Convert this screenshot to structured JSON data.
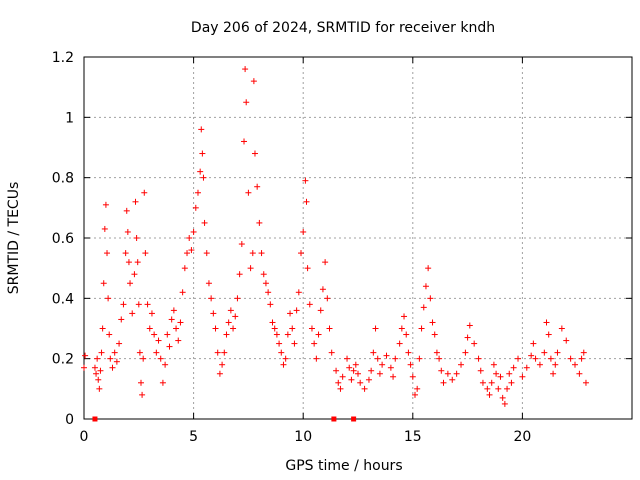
{
  "chart_data": {
    "type": "scatter",
    "title": "Day 206 of 2024, SRMTID for receiver kndh",
    "xlabel": "GPS time / hours",
    "ylabel": "SRMTID / TECUs",
    "xlim": [
      0,
      25
    ],
    "ylim": [
      0,
      1.2
    ],
    "xticks": [
      0,
      5,
      10,
      15,
      20
    ],
    "yticks": [
      0,
      0.2,
      0.4,
      0.6,
      0.8,
      1,
      1.2
    ],
    "xtick_labels": [
      "0",
      "5",
      "10",
      "15",
      "20"
    ],
    "ytick_labels": [
      "0",
      "0.2",
      "0.4",
      "0.6",
      "0.8",
      "1",
      "1.2"
    ],
    "grid": true,
    "marker_color": "#ff0000",
    "series": [
      {
        "name": "SRMTID",
        "marker": "plus",
        "points": [
          [
            0.0,
            0.17
          ],
          [
            0.05,
            0.21
          ],
          [
            0.5,
            0.17
          ],
          [
            0.55,
            0.15
          ],
          [
            0.6,
            0.2
          ],
          [
            0.65,
            0.13
          ],
          [
            0.7,
            0.1
          ],
          [
            0.75,
            0.16
          ],
          [
            0.8,
            0.22
          ],
          [
            0.85,
            0.3
          ],
          [
            0.9,
            0.45
          ],
          [
            0.95,
            0.63
          ],
          [
            1.0,
            0.71
          ],
          [
            1.05,
            0.55
          ],
          [
            1.1,
            0.4
          ],
          [
            1.15,
            0.28
          ],
          [
            1.2,
            0.2
          ],
          [
            1.3,
            0.17
          ],
          [
            1.4,
            0.22
          ],
          [
            1.5,
            0.19
          ],
          [
            1.6,
            0.25
          ],
          [
            1.7,
            0.33
          ],
          [
            1.8,
            0.38
          ],
          [
            1.9,
            0.55
          ],
          [
            1.95,
            0.69
          ],
          [
            2.0,
            0.62
          ],
          [
            2.05,
            0.52
          ],
          [
            2.1,
            0.45
          ],
          [
            2.2,
            0.35
          ],
          [
            2.3,
            0.48
          ],
          [
            2.35,
            0.72
          ],
          [
            2.4,
            0.6
          ],
          [
            2.45,
            0.52
          ],
          [
            2.5,
            0.38
          ],
          [
            2.55,
            0.22
          ],
          [
            2.6,
            0.12
          ],
          [
            2.65,
            0.08
          ],
          [
            2.7,
            0.2
          ],
          [
            2.75,
            0.75
          ],
          [
            2.8,
            0.55
          ],
          [
            2.9,
            0.38
          ],
          [
            3.0,
            0.3
          ],
          [
            3.1,
            0.35
          ],
          [
            3.2,
            0.28
          ],
          [
            3.3,
            0.22
          ],
          [
            3.4,
            0.26
          ],
          [
            3.5,
            0.2
          ],
          [
            3.6,
            0.12
          ],
          [
            3.7,
            0.18
          ],
          [
            3.8,
            0.28
          ],
          [
            3.9,
            0.24
          ],
          [
            4.0,
            0.33
          ],
          [
            4.1,
            0.36
          ],
          [
            4.2,
            0.3
          ],
          [
            4.3,
            0.26
          ],
          [
            4.4,
            0.32
          ],
          [
            4.5,
            0.42
          ],
          [
            4.6,
            0.5
          ],
          [
            4.7,
            0.55
          ],
          [
            4.8,
            0.6
          ],
          [
            4.9,
            0.56
          ],
          [
            5.0,
            0.62
          ],
          [
            5.1,
            0.7
          ],
          [
            5.2,
            0.75
          ],
          [
            5.3,
            0.82
          ],
          [
            5.35,
            0.96
          ],
          [
            5.4,
            0.88
          ],
          [
            5.45,
            0.8
          ],
          [
            5.5,
            0.65
          ],
          [
            5.6,
            0.55
          ],
          [
            5.7,
            0.45
          ],
          [
            5.8,
            0.4
          ],
          [
            5.9,
            0.35
          ],
          [
            6.0,
            0.3
          ],
          [
            6.1,
            0.22
          ],
          [
            6.2,
            0.15
          ],
          [
            6.3,
            0.18
          ],
          [
            6.4,
            0.22
          ],
          [
            6.5,
            0.28
          ],
          [
            6.6,
            0.32
          ],
          [
            6.7,
            0.36
          ],
          [
            6.8,
            0.3
          ],
          [
            6.9,
            0.34
          ],
          [
            7.0,
            0.4
          ],
          [
            7.1,
            0.48
          ],
          [
            7.2,
            0.58
          ],
          [
            7.3,
            0.92
          ],
          [
            7.35,
            1.16
          ],
          [
            7.4,
            1.05
          ],
          [
            7.5,
            0.75
          ],
          [
            7.6,
            0.5
          ],
          [
            7.7,
            0.55
          ],
          [
            7.75,
            1.12
          ],
          [
            7.8,
            0.88
          ],
          [
            7.9,
            0.77
          ],
          [
            8.0,
            0.65
          ],
          [
            8.1,
            0.55
          ],
          [
            8.2,
            0.48
          ],
          [
            8.3,
            0.45
          ],
          [
            8.4,
            0.42
          ],
          [
            8.5,
            0.38
          ],
          [
            8.6,
            0.32
          ],
          [
            8.7,
            0.3
          ],
          [
            8.8,
            0.28
          ],
          [
            8.9,
            0.25
          ],
          [
            9.0,
            0.22
          ],
          [
            9.1,
            0.18
          ],
          [
            9.2,
            0.2
          ],
          [
            9.3,
            0.28
          ],
          [
            9.4,
            0.35
          ],
          [
            9.5,
            0.3
          ],
          [
            9.6,
            0.25
          ],
          [
            9.7,
            0.36
          ],
          [
            9.8,
            0.42
          ],
          [
            9.9,
            0.55
          ],
          [
            10.0,
            0.62
          ],
          [
            10.1,
            0.79
          ],
          [
            10.15,
            0.72
          ],
          [
            10.2,
            0.5
          ],
          [
            10.3,
            0.38
          ],
          [
            10.4,
            0.3
          ],
          [
            10.5,
            0.25
          ],
          [
            10.6,
            0.2
          ],
          [
            10.7,
            0.28
          ],
          [
            10.8,
            0.36
          ],
          [
            10.9,
            0.43
          ],
          [
            11.0,
            0.52
          ],
          [
            11.1,
            0.4
          ],
          [
            11.2,
            0.3
          ],
          [
            11.3,
            0.22
          ],
          [
            11.5,
            0.16
          ],
          [
            11.6,
            0.12
          ],
          [
            11.7,
            0.1
          ],
          [
            11.8,
            0.14
          ],
          [
            12.0,
            0.2
          ],
          [
            12.1,
            0.17
          ],
          [
            12.2,
            0.13
          ],
          [
            12.3,
            0.16
          ],
          [
            12.4,
            0.18
          ],
          [
            12.5,
            0.15
          ],
          [
            12.6,
            0.12
          ],
          [
            12.8,
            0.1
          ],
          [
            13.0,
            0.13
          ],
          [
            13.1,
            0.16
          ],
          [
            13.2,
            0.22
          ],
          [
            13.3,
            0.3
          ],
          [
            13.4,
            0.2
          ],
          [
            13.5,
            0.15
          ],
          [
            13.6,
            0.18
          ],
          [
            13.8,
            0.21
          ],
          [
            14.0,
            0.17
          ],
          [
            14.1,
            0.14
          ],
          [
            14.2,
            0.2
          ],
          [
            14.4,
            0.25
          ],
          [
            14.5,
            0.3
          ],
          [
            14.6,
            0.34
          ],
          [
            14.7,
            0.28
          ],
          [
            14.8,
            0.22
          ],
          [
            14.9,
            0.18
          ],
          [
            15.0,
            0.14
          ],
          [
            15.1,
            0.08
          ],
          [
            15.2,
            0.1
          ],
          [
            15.3,
            0.2
          ],
          [
            15.4,
            0.3
          ],
          [
            15.5,
            0.37
          ],
          [
            15.6,
            0.44
          ],
          [
            15.7,
            0.5
          ],
          [
            15.8,
            0.4
          ],
          [
            15.9,
            0.32
          ],
          [
            16.0,
            0.28
          ],
          [
            16.1,
            0.22
          ],
          [
            16.2,
            0.2
          ],
          [
            16.3,
            0.16
          ],
          [
            16.4,
            0.12
          ],
          [
            16.6,
            0.15
          ],
          [
            16.8,
            0.13
          ],
          [
            17.0,
            0.15
          ],
          [
            17.2,
            0.18
          ],
          [
            17.4,
            0.22
          ],
          [
            17.5,
            0.27
          ],
          [
            17.6,
            0.31
          ],
          [
            17.8,
            0.25
          ],
          [
            18.0,
            0.2
          ],
          [
            18.1,
            0.16
          ],
          [
            18.2,
            0.12
          ],
          [
            18.4,
            0.1
          ],
          [
            18.5,
            0.08
          ],
          [
            18.6,
            0.12
          ],
          [
            18.7,
            0.18
          ],
          [
            18.8,
            0.15
          ],
          [
            18.9,
            0.1
          ],
          [
            19.0,
            0.14
          ],
          [
            19.1,
            0.07
          ],
          [
            19.2,
            0.05
          ],
          [
            19.3,
            0.1
          ],
          [
            19.4,
            0.15
          ],
          [
            19.5,
            0.12
          ],
          [
            19.6,
            0.17
          ],
          [
            19.8,
            0.2
          ],
          [
            20.0,
            0.14
          ],
          [
            20.2,
            0.17
          ],
          [
            20.4,
            0.21
          ],
          [
            20.5,
            0.25
          ],
          [
            20.6,
            0.2
          ],
          [
            20.8,
            0.18
          ],
          [
            21.0,
            0.22
          ],
          [
            21.1,
            0.32
          ],
          [
            21.2,
            0.28
          ],
          [
            21.3,
            0.2
          ],
          [
            21.4,
            0.15
          ],
          [
            21.5,
            0.18
          ],
          [
            21.6,
            0.22
          ],
          [
            21.8,
            0.3
          ],
          [
            22.0,
            0.26
          ],
          [
            22.2,
            0.2
          ],
          [
            22.4,
            0.18
          ],
          [
            22.6,
            0.15
          ],
          [
            22.7,
            0.2
          ],
          [
            22.8,
            0.22
          ],
          [
            22.9,
            0.12
          ]
        ]
      }
    ],
    "baseline_markers": [
      0.5,
      11.4,
      12.3
    ]
  }
}
